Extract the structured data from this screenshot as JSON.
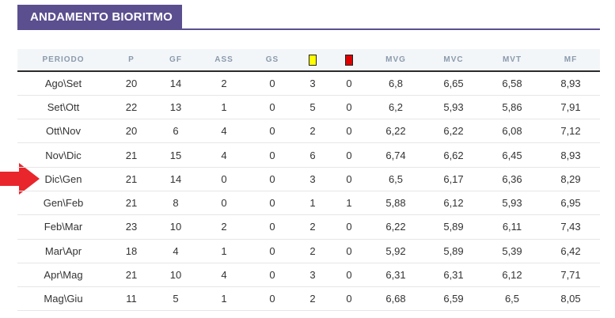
{
  "header": {
    "title": "ANDAMENTO BIORITMO"
  },
  "table": {
    "columns": [
      "PERIODO",
      "P",
      "GF",
      "ASS",
      "GS",
      "",
      "",
      "MVG",
      "MVC",
      "MVT",
      "MF"
    ],
    "card_colors": {
      "yellow": "#ffff00",
      "red": "#dd0000"
    },
    "rows": [
      [
        "Ago\\Set",
        "20",
        "14",
        "2",
        "0",
        "3",
        "0",
        "6,8",
        "6,65",
        "6,58",
        "8,93"
      ],
      [
        "Set\\Ott",
        "22",
        "13",
        "1",
        "0",
        "5",
        "0",
        "6,2",
        "5,93",
        "5,86",
        "7,91"
      ],
      [
        "Ott\\Nov",
        "20",
        "6",
        "4",
        "0",
        "2",
        "0",
        "6,22",
        "6,22",
        "6,08",
        "7,12"
      ],
      [
        "Nov\\Dic",
        "21",
        "15",
        "4",
        "0",
        "6",
        "0",
        "6,74",
        "6,62",
        "6,45",
        "8,93"
      ],
      [
        "Dic\\Gen",
        "21",
        "14",
        "0",
        "0",
        "3",
        "0",
        "6,5",
        "6,17",
        "6,36",
        "8,29"
      ],
      [
        "Gen\\Feb",
        "21",
        "8",
        "0",
        "0",
        "1",
        "1",
        "5,88",
        "6,12",
        "5,93",
        "6,95"
      ],
      [
        "Feb\\Mar",
        "23",
        "10",
        "2",
        "0",
        "2",
        "0",
        "6,22",
        "5,89",
        "6,11",
        "7,43"
      ],
      [
        "Mar\\Apr",
        "18",
        "4",
        "1",
        "0",
        "2",
        "0",
        "5,92",
        "5,89",
        "5,39",
        "6,42"
      ],
      [
        "Apr\\Mag",
        "21",
        "10",
        "4",
        "0",
        "3",
        "0",
        "6,31",
        "6,31",
        "6,12",
        "7,71"
      ],
      [
        "Mag\\Giu",
        "11",
        "5",
        "1",
        "0",
        "2",
        "0",
        "6,68",
        "6,59",
        "6,5",
        "8,05"
      ]
    ]
  },
  "arrow": {
    "color": "#e8262c"
  }
}
